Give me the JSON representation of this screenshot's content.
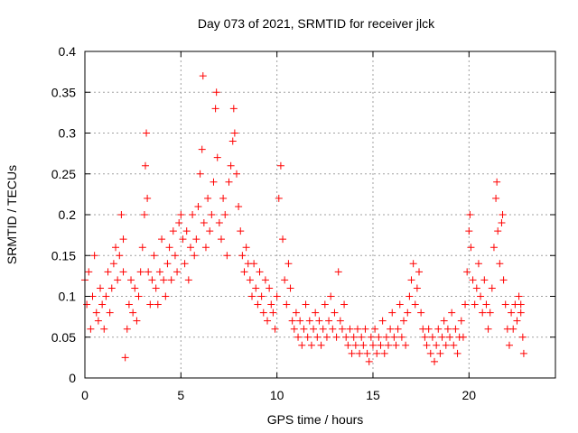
{
  "chart_data": {
    "type": "scatter",
    "title": "Day 073 of 2021, SRMTID for receiver jlck",
    "xlabel": "GPS time / hours",
    "ylabel": "SRMTID / TECUs",
    "xlim": [
      0,
      24.5
    ],
    "ylim": [
      0,
      0.4
    ],
    "grid": true,
    "marker": "+",
    "color": "#ff0000",
    "x_ticks": [
      0,
      5,
      10,
      15,
      20
    ],
    "x_tick_labels": [
      "0",
      "5",
      "10",
      "15",
      "20"
    ],
    "y_ticks": [
      0,
      0.05,
      0.1,
      0.15,
      0.2,
      0.25,
      0.3,
      0.35,
      0.4
    ],
    "y_tick_labels": [
      "0",
      "0.05",
      "0.1",
      "0.15",
      "0.2",
      "0.25",
      "0.3",
      "0.35",
      "0.4"
    ],
    "series": [
      {
        "name": "SRMTID",
        "points": [
          [
            0.0,
            0.12
          ],
          [
            0.1,
            0.09
          ],
          [
            0.2,
            0.13
          ],
          [
            0.3,
            0.06
          ],
          [
            0.4,
            0.1
          ],
          [
            0.5,
            0.15
          ],
          [
            0.6,
            0.08
          ],
          [
            0.7,
            0.07
          ],
          [
            0.8,
            0.11
          ],
          [
            0.9,
            0.09
          ],
          [
            1.0,
            0.06
          ],
          [
            1.1,
            0.1
          ],
          [
            1.2,
            0.13
          ],
          [
            1.3,
            0.08
          ],
          [
            1.4,
            0.11
          ],
          [
            1.5,
            0.14
          ],
          [
            1.6,
            0.16
          ],
          [
            1.7,
            0.12
          ],
          [
            1.8,
            0.15
          ],
          [
            1.9,
            0.2
          ],
          [
            2.0,
            0.13
          ],
          [
            2.0,
            0.17
          ],
          [
            2.1,
            0.025
          ],
          [
            2.2,
            0.06
          ],
          [
            2.3,
            0.09
          ],
          [
            2.4,
            0.12
          ],
          [
            2.5,
            0.08
          ],
          [
            2.6,
            0.11
          ],
          [
            2.7,
            0.07
          ],
          [
            2.8,
            0.1
          ],
          [
            2.9,
            0.13
          ],
          [
            3.0,
            0.16
          ],
          [
            3.1,
            0.2
          ],
          [
            3.15,
            0.26
          ],
          [
            3.2,
            0.3
          ],
          [
            3.25,
            0.22
          ],
          [
            3.3,
            0.13
          ],
          [
            3.4,
            0.09
          ],
          [
            3.5,
            0.12
          ],
          [
            3.6,
            0.15
          ],
          [
            3.7,
            0.11
          ],
          [
            3.8,
            0.09
          ],
          [
            3.9,
            0.13
          ],
          [
            4.0,
            0.17
          ],
          [
            4.1,
            0.12
          ],
          [
            4.2,
            0.1
          ],
          [
            4.3,
            0.14
          ],
          [
            4.4,
            0.16
          ],
          [
            4.5,
            0.12
          ],
          [
            4.6,
            0.18
          ],
          [
            4.7,
            0.15
          ],
          [
            4.8,
            0.13
          ],
          [
            4.9,
            0.19
          ],
          [
            5.0,
            0.2
          ],
          [
            5.1,
            0.17
          ],
          [
            5.2,
            0.14
          ],
          [
            5.3,
            0.18
          ],
          [
            5.4,
            0.12
          ],
          [
            5.5,
            0.16
          ],
          [
            5.6,
            0.2
          ],
          [
            5.7,
            0.15
          ],
          [
            5.8,
            0.17
          ],
          [
            5.9,
            0.21
          ],
          [
            6.0,
            0.25
          ],
          [
            6.1,
            0.28
          ],
          [
            6.15,
            0.37
          ],
          [
            6.2,
            0.19
          ],
          [
            6.3,
            0.16
          ],
          [
            6.4,
            0.22
          ],
          [
            6.5,
            0.18
          ],
          [
            6.6,
            0.2
          ],
          [
            6.7,
            0.24
          ],
          [
            6.8,
            0.33
          ],
          [
            6.85,
            0.35
          ],
          [
            6.9,
            0.27
          ],
          [
            7.0,
            0.19
          ],
          [
            7.1,
            0.17
          ],
          [
            7.2,
            0.22
          ],
          [
            7.3,
            0.2
          ],
          [
            7.4,
            0.15
          ],
          [
            7.5,
            0.24
          ],
          [
            7.6,
            0.26
          ],
          [
            7.7,
            0.29
          ],
          [
            7.75,
            0.33
          ],
          [
            7.8,
            0.3
          ],
          [
            7.9,
            0.25
          ],
          [
            8.0,
            0.21
          ],
          [
            8.1,
            0.18
          ],
          [
            8.2,
            0.15
          ],
          [
            8.3,
            0.13
          ],
          [
            8.4,
            0.16
          ],
          [
            8.5,
            0.14
          ],
          [
            8.6,
            0.12
          ],
          [
            8.7,
            0.1
          ],
          [
            8.8,
            0.14
          ],
          [
            8.9,
            0.11
          ],
          [
            9.0,
            0.09
          ],
          [
            9.1,
            0.13
          ],
          [
            9.2,
            0.1
          ],
          [
            9.3,
            0.08
          ],
          [
            9.4,
            0.12
          ],
          [
            9.5,
            0.07
          ],
          [
            9.6,
            0.11
          ],
          [
            9.7,
            0.09
          ],
          [
            9.8,
            0.08
          ],
          [
            9.9,
            0.06
          ],
          [
            10.0,
            0.1
          ],
          [
            10.1,
            0.22
          ],
          [
            10.2,
            0.26
          ],
          [
            10.3,
            0.17
          ],
          [
            10.4,
            0.12
          ],
          [
            10.5,
            0.09
          ],
          [
            10.6,
            0.14
          ],
          [
            10.7,
            0.11
          ],
          [
            10.8,
            0.07
          ],
          [
            10.9,
            0.06
          ],
          [
            11.0,
            0.08
          ],
          [
            11.1,
            0.05
          ],
          [
            11.2,
            0.07
          ],
          [
            11.3,
            0.04
          ],
          [
            11.4,
            0.06
          ],
          [
            11.5,
            0.09
          ],
          [
            11.6,
            0.05
          ],
          [
            11.7,
            0.07
          ],
          [
            11.8,
            0.04
          ],
          [
            11.9,
            0.06
          ],
          [
            12.0,
            0.08
          ],
          [
            12.1,
            0.05
          ],
          [
            12.2,
            0.07
          ],
          [
            12.3,
            0.04
          ],
          [
            12.4,
            0.06
          ],
          [
            12.5,
            0.09
          ],
          [
            12.6,
            0.05
          ],
          [
            12.7,
            0.07
          ],
          [
            12.8,
            0.1
          ],
          [
            12.9,
            0.06
          ],
          [
            13.0,
            0.08
          ],
          [
            13.1,
            0.05
          ],
          [
            13.2,
            0.13
          ],
          [
            13.3,
            0.07
          ],
          [
            13.4,
            0.06
          ],
          [
            13.5,
            0.09
          ],
          [
            13.6,
            0.05
          ],
          [
            13.7,
            0.04
          ],
          [
            13.8,
            0.06
          ],
          [
            13.9,
            0.03
          ],
          [
            14.0,
            0.05
          ],
          [
            14.1,
            0.04
          ],
          [
            14.2,
            0.06
          ],
          [
            14.3,
            0.03
          ],
          [
            14.4,
            0.05
          ],
          [
            14.5,
            0.04
          ],
          [
            14.6,
            0.06
          ],
          [
            14.7,
            0.03
          ],
          [
            14.8,
            0.02
          ],
          [
            14.9,
            0.05
          ],
          [
            15.0,
            0.04
          ],
          [
            15.1,
            0.06
          ],
          [
            15.2,
            0.03
          ],
          [
            15.3,
            0.05
          ],
          [
            15.4,
            0.04
          ],
          [
            15.5,
            0.07
          ],
          [
            15.6,
            0.03
          ],
          [
            15.7,
            0.05
          ],
          [
            15.8,
            0.04
          ],
          [
            15.9,
            0.06
          ],
          [
            16.0,
            0.08
          ],
          [
            16.1,
            0.05
          ],
          [
            16.2,
            0.04
          ],
          [
            16.3,
            0.06
          ],
          [
            16.4,
            0.09
          ],
          [
            16.5,
            0.05
          ],
          [
            16.6,
            0.07
          ],
          [
            16.7,
            0.04
          ],
          [
            16.8,
            0.08
          ],
          [
            16.9,
            0.1
          ],
          [
            17.0,
            0.12
          ],
          [
            17.1,
            0.14
          ],
          [
            17.2,
            0.09
          ],
          [
            17.3,
            0.11
          ],
          [
            17.4,
            0.13
          ],
          [
            17.5,
            0.08
          ],
          [
            17.6,
            0.06
          ],
          [
            17.7,
            0.05
          ],
          [
            17.8,
            0.04
          ],
          [
            17.9,
            0.06
          ],
          [
            18.0,
            0.03
          ],
          [
            18.1,
            0.05
          ],
          [
            18.2,
            0.02
          ],
          [
            18.3,
            0.04
          ],
          [
            18.4,
            0.06
          ],
          [
            18.5,
            0.03
          ],
          [
            18.6,
            0.05
          ],
          [
            18.7,
            0.07
          ],
          [
            18.8,
            0.04
          ],
          [
            18.9,
            0.06
          ],
          [
            19.0,
            0.05
          ],
          [
            19.1,
            0.08
          ],
          [
            19.2,
            0.04
          ],
          [
            19.3,
            0.06
          ],
          [
            19.4,
            0.03
          ],
          [
            19.5,
            0.05
          ],
          [
            19.6,
            0.07
          ],
          [
            19.7,
            0.05
          ],
          [
            19.8,
            0.09
          ],
          [
            19.9,
            0.13
          ],
          [
            20.0,
            0.18
          ],
          [
            20.05,
            0.2
          ],
          [
            20.1,
            0.16
          ],
          [
            20.2,
            0.12
          ],
          [
            20.3,
            0.09
          ],
          [
            20.4,
            0.11
          ],
          [
            20.5,
            0.14
          ],
          [
            20.6,
            0.1
          ],
          [
            20.7,
            0.08
          ],
          [
            20.8,
            0.12
          ],
          [
            20.9,
            0.09
          ],
          [
            21.0,
            0.06
          ],
          [
            21.1,
            0.08
          ],
          [
            21.2,
            0.11
          ],
          [
            21.3,
            0.16
          ],
          [
            21.4,
            0.22
          ],
          [
            21.45,
            0.24
          ],
          [
            21.5,
            0.18
          ],
          [
            21.6,
            0.14
          ],
          [
            21.7,
            0.19
          ],
          [
            21.75,
            0.2
          ],
          [
            21.8,
            0.12
          ],
          [
            21.9,
            0.09
          ],
          [
            22.0,
            0.06
          ],
          [
            22.1,
            0.04
          ],
          [
            22.2,
            0.08
          ],
          [
            22.3,
            0.06
          ],
          [
            22.4,
            0.09
          ],
          [
            22.5,
            0.07
          ],
          [
            22.6,
            0.1
          ],
          [
            22.7,
            0.08
          ],
          [
            22.8,
            0.05
          ],
          [
            22.85,
            0.03
          ],
          [
            22.7,
            0.09
          ]
        ]
      }
    ]
  }
}
